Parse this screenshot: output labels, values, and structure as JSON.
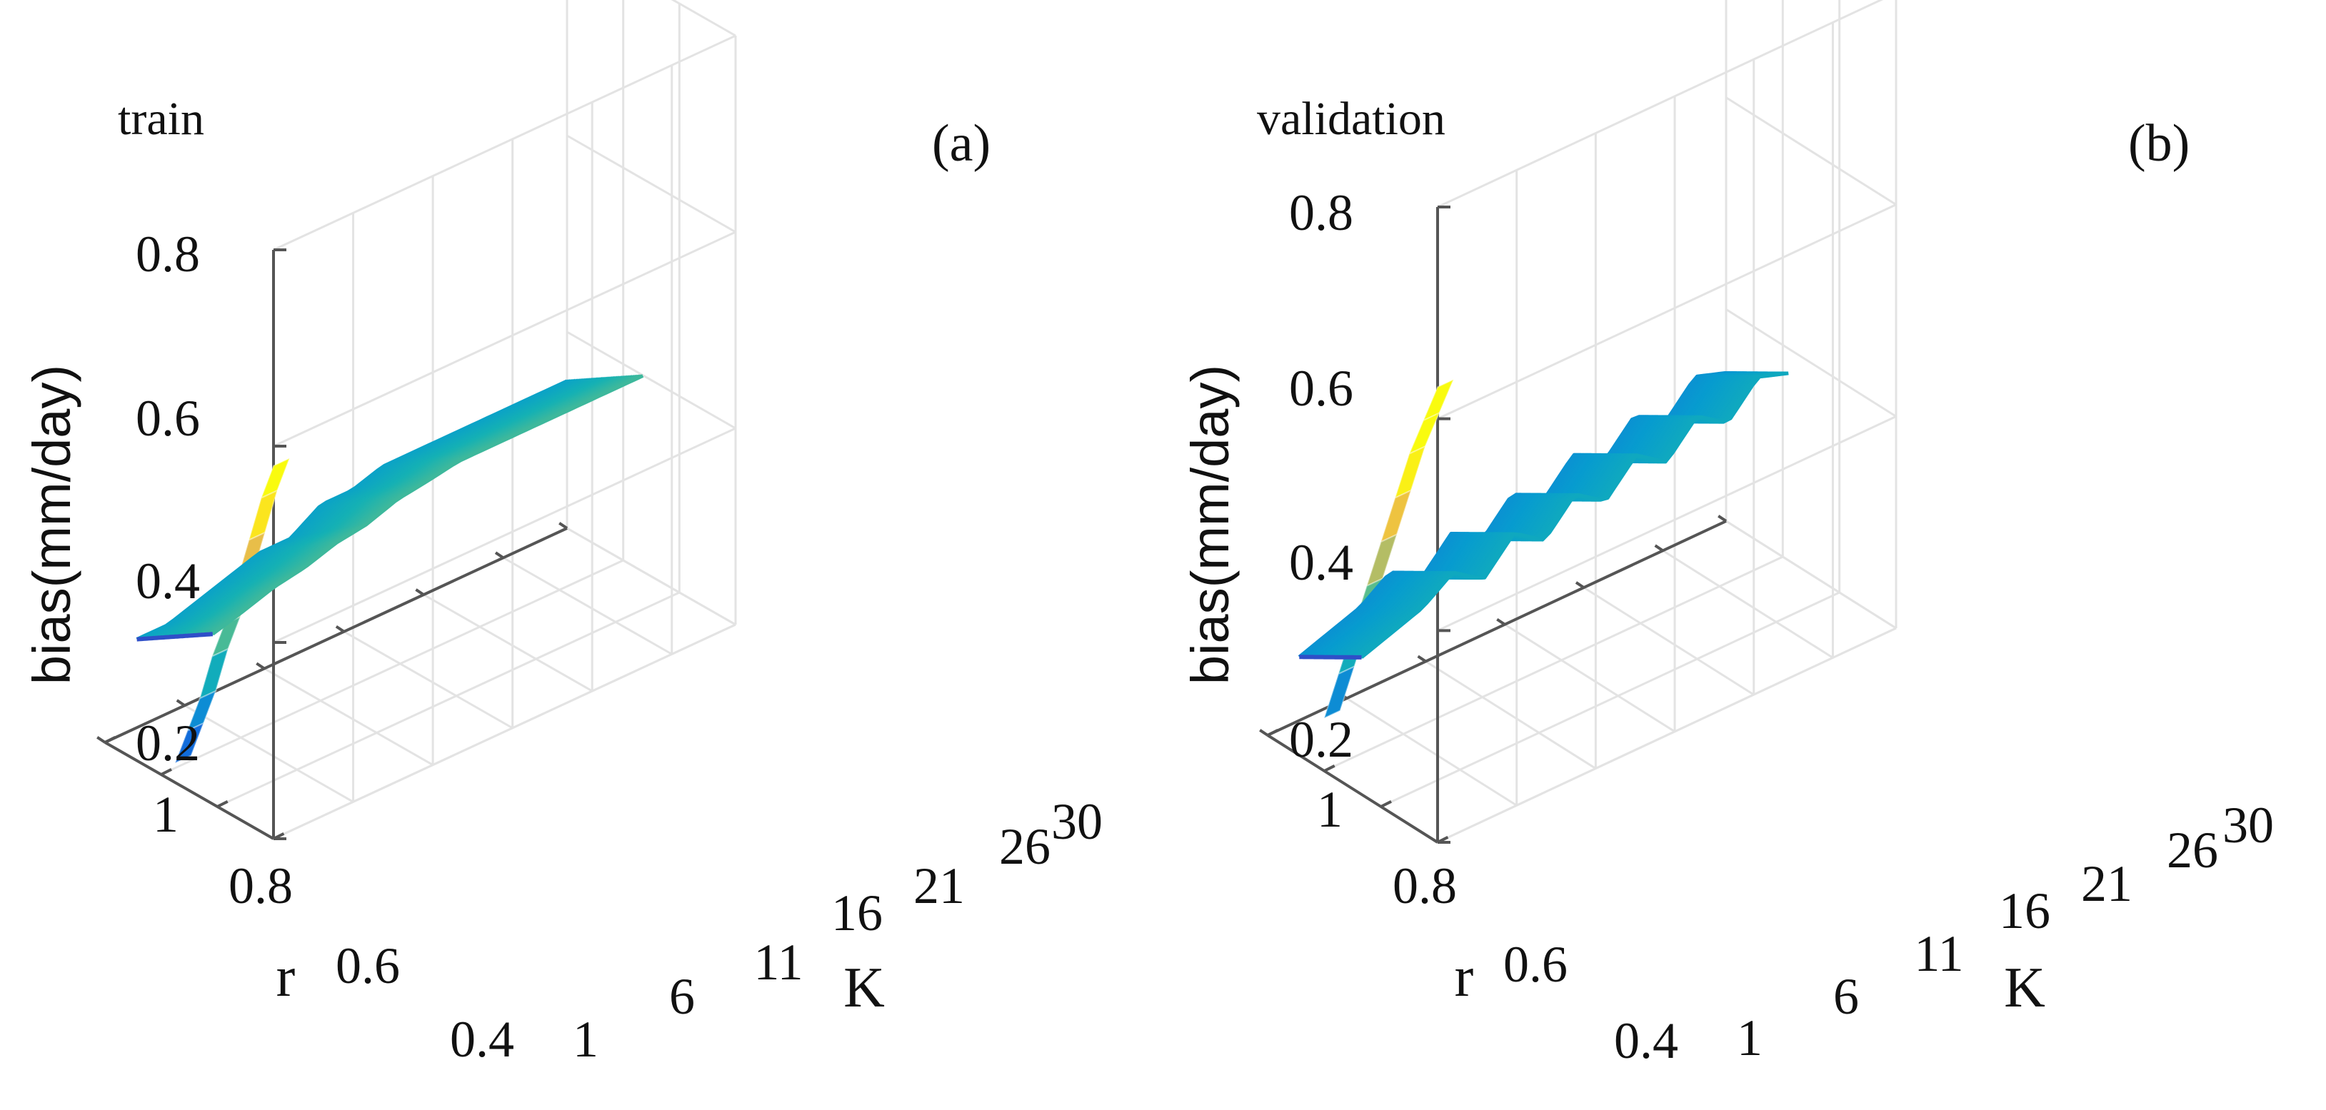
{
  "figure": {
    "background": "#ffffff",
    "grid_color": "#e3e3e3",
    "axis_color": "#555555"
  },
  "chart_data": [
    {
      "type": "surface",
      "title": "train",
      "panel_label": "(a)",
      "xlabel": "K",
      "ylabel": "r",
      "zlabel": "bias(mm/day)",
      "x_ticks": [
        "1",
        "6",
        "11",
        "16",
        "21",
        "26",
        "30"
      ],
      "y_ticks": [
        "1",
        "0.8",
        "0.6",
        "0.4"
      ],
      "z_ticks": [
        "0.2",
        "0.4",
        "0.6",
        "0.8"
      ],
      "xlim": [
        1,
        30
      ],
      "ylim": [
        0.4,
        1
      ],
      "zlim": [
        0.2,
        0.8
      ],
      "grid": true,
      "colormap": "parula",
      "sheet": {
        "K": 2,
        "r_bottom": 0.65,
        "bias": [
          0.58,
          0.54,
          0.49,
          0.44,
          0.39,
          0.35,
          0.3,
          0.26,
          0.22
        ]
      },
      "surface": {
        "K": [
          3,
          5,
          7,
          9,
          11,
          13,
          15,
          17,
          19,
          21,
          23,
          25,
          27,
          29,
          30
        ],
        "bias_at_r_low": [
          0.29,
          0.29,
          0.3,
          0.31,
          0.32,
          0.32,
          0.34,
          0.34,
          0.35,
          0.35,
          0.35,
          0.35,
          0.35,
          0.35,
          0.35
        ],
        "bias_at_r_high": [
          0.4,
          0.42,
          0.43,
          0.43,
          0.44,
          0.45,
          0.45,
          0.46,
          0.46,
          0.46,
          0.46,
          0.46,
          0.46,
          0.46,
          0.46
        ]
      }
    },
    {
      "type": "surface",
      "title": "validation",
      "panel_label": "(b)",
      "xlabel": "K",
      "ylabel": "r",
      "zlabel": "bias(mm/day)",
      "x_ticks": [
        "1",
        "6",
        "11",
        "16",
        "21",
        "26",
        "30"
      ],
      "y_ticks": [
        "1",
        "0.8",
        "0.6",
        "0.4"
      ],
      "z_ticks": [
        "0.2",
        "0.4",
        "0.6",
        "0.8"
      ],
      "xlim": [
        1,
        30
      ],
      "ylim": [
        0.4,
        1
      ],
      "zlim": [
        0.2,
        0.8
      ],
      "grid": true,
      "colormap": "parula",
      "sheet": {
        "K": 2,
        "r_bottom": 0.6,
        "bias": [
          0.63,
          0.59,
          0.55,
          0.5,
          0.45,
          0.4,
          0.35,
          0.3,
          0.25
        ]
      },
      "surface": {
        "K": [
          3,
          5,
          7,
          9,
          11,
          13,
          15,
          17,
          19,
          21,
          23,
          25,
          27,
          29,
          30
        ],
        "bias_at_r_low": [
          0.26,
          0.27,
          0.28,
          0.3,
          0.28,
          0.31,
          0.29,
          0.32,
          0.3,
          0.33,
          0.31,
          0.34,
          0.32,
          0.35,
          0.34
        ],
        "bias_at_r_high": [
          0.36,
          0.37,
          0.38,
          0.4,
          0.38,
          0.41,
          0.39,
          0.42,
          0.4,
          0.43,
          0.41,
          0.44,
          0.42,
          0.45,
          0.44
        ]
      }
    }
  ]
}
